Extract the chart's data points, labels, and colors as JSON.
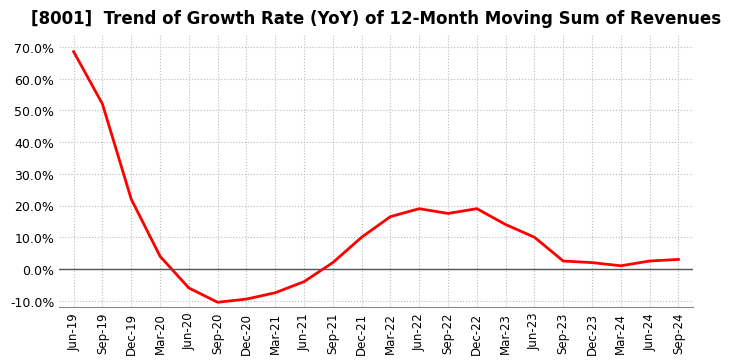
{
  "title": "[8001]  Trend of Growth Rate (YoY) of 12-Month Moving Sum of Revenues",
  "title_fontsize": 12,
  "line_color": "#FF0000",
  "line_width": 2.0,
  "background_color": "#FFFFFF",
  "ylim": [
    -0.12,
    0.74
  ],
  "yticks": [
    -0.1,
    0.0,
    0.1,
    0.2,
    0.3,
    0.4,
    0.5,
    0.6,
    0.7
  ],
  "x_labels": [
    "Jun-19",
    "Sep-19",
    "Dec-19",
    "Mar-20",
    "Jun-20",
    "Sep-20",
    "Dec-20",
    "Mar-21",
    "Jun-21",
    "Sep-21",
    "Dec-21",
    "Mar-22",
    "Jun-22",
    "Sep-22",
    "Dec-22",
    "Mar-23",
    "Jun-23",
    "Sep-23",
    "Dec-23",
    "Mar-24",
    "Jun-24",
    "Sep-24"
  ],
  "y_values": [
    0.685,
    0.52,
    0.22,
    0.04,
    -0.06,
    -0.105,
    -0.095,
    -0.075,
    -0.04,
    0.02,
    0.1,
    0.165,
    0.19,
    0.175,
    0.19,
    0.14,
    0.1,
    0.025,
    0.02,
    0.01,
    0.025,
    0.03
  ],
  "grid_color": "#BBBBBB",
  "spine_color": "#888888",
  "zero_line_color": "#555555",
  "tick_fontsize": 8.5,
  "ylabel_fontsize": 9
}
